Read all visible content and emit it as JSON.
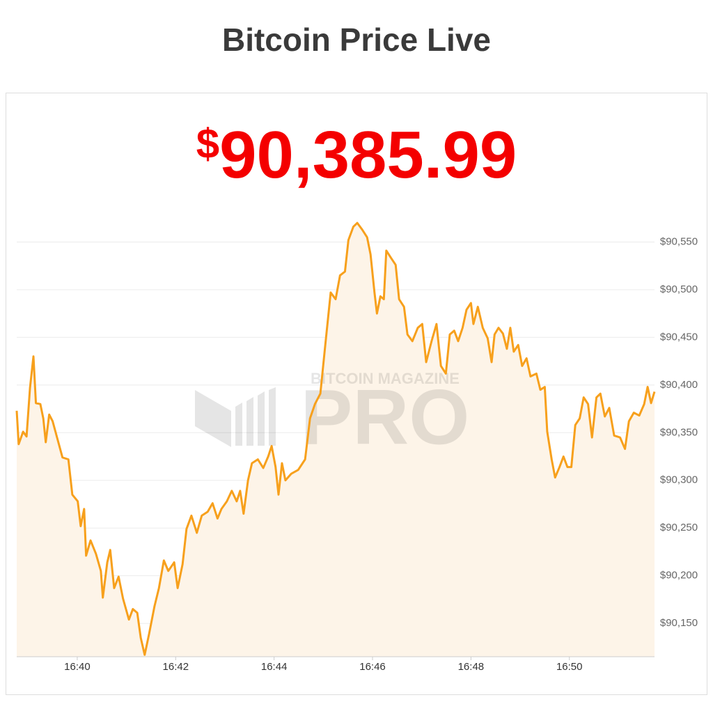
{
  "header": {
    "title": "Bitcoin Price Live"
  },
  "price": {
    "currency": "$",
    "amount": "90,385.99"
  },
  "watermark": {
    "top": "BITCOIN MAGAZINE",
    "main": "PRO"
  },
  "chart_data": {
    "type": "line",
    "color": "#f7a01c",
    "fill": "#fdf4e8",
    "grid": true,
    "x": [
      998.77,
      998.81,
      998.9,
      998.97,
      999.04,
      999.11,
      999.16,
      999.25,
      999.31,
      999.36,
      999.43,
      999.5,
      999.6,
      999.7,
      999.82,
      999.9,
      1000.01,
      1000.07,
      1000.14,
      1000.18,
      1000.27,
      1000.38,
      1000.48,
      1000.52,
      1000.61,
      1000.67,
      1000.75,
      1000.84,
      1000.93,
      1001.05,
      1001.13,
      1001.22,
      1001.29,
      1001.37,
      1001.46,
      1001.57,
      1001.66,
      1001.76,
      1001.85,
      1001.97,
      1002.04,
      1002.14,
      1002.22,
      1002.32,
      1002.43,
      1002.53,
      1002.65,
      1002.75,
      1002.85,
      1002.93,
      1003.04,
      1003.14,
      1003.24,
      1003.31,
      1003.38,
      1003.47,
      1003.55,
      1003.67,
      1003.78,
      1003.88,
      1003.95,
      1004.03,
      1004.09,
      1004.16,
      1004.23,
      1004.35,
      1004.49,
      1004.63,
      1004.73,
      1004.83,
      1004.94,
      1005.04,
      1005.15,
      1005.25,
      1005.34,
      1005.44,
      1005.51,
      1005.61,
      1005.69,
      1005.79,
      1005.89,
      1005.96,
      1006.04,
      1006.09,
      1006.16,
      1006.23,
      1006.28,
      1006.38,
      1006.47,
      1006.54,
      1006.64,
      1006.71,
      1006.81,
      1006.92,
      1007.01,
      1007.09,
      1007.2,
      1007.3,
      1007.39,
      1007.49,
      1007.57,
      1007.66,
      1007.74,
      1007.83,
      1007.91,
      1008.0,
      1008.05,
      1008.14,
      1008.24,
      1008.34,
      1008.42,
      1008.48,
      1008.56,
      1008.65,
      1008.73,
      1008.8,
      1008.87,
      1008.96,
      1009.04,
      1009.13,
      1009.21,
      1009.33,
      1009.41,
      1009.5,
      1009.55,
      1009.64,
      1009.71,
      1009.8,
      1009.88,
      1009.96,
      1010.04,
      1010.12,
      1010.21,
      1010.29,
      1010.38,
      1010.46,
      1010.55,
      1010.63,
      1010.72,
      1010.81,
      1010.91,
      1011.03,
      1011.13,
      1011.21,
      1011.31,
      1011.42,
      1011.52,
      1011.59,
      1011.66,
      1011.73
    ],
    "values": [
      90373,
      90338,
      90351,
      90346,
      90397,
      90430,
      90381,
      90380,
      90365,
      90340,
      90369,
      90362,
      90343,
      90324,
      90322,
      90285,
      90278,
      90252,
      90270,
      90221,
      90237,
      90223,
      90205,
      90177,
      90214,
      90227,
      90187,
      90199,
      90176,
      90154,
      90165,
      90161,
      90135,
      90117,
      90139,
      90168,
      90187,
      90216,
      90205,
      90214,
      90187,
      90212,
      90249,
      90263,
      90245,
      90263,
      90267,
      90276,
      90260,
      90270,
      90278,
      90289,
      90278,
      90289,
      90265,
      90300,
      90318,
      90322,
      90313,
      90325,
      90336,
      90314,
      90285,
      90318,
      90300,
      90307,
      90311,
      90322,
      90365,
      90380,
      90391,
      90442,
      90497,
      90490,
      90515,
      90519,
      90552,
      90566,
      90570,
      90563,
      90555,
      90537,
      90497,
      90475,
      90493,
      90490,
      90541,
      90533,
      90526,
      90490,
      90482,
      90453,
      90446,
      90460,
      90464,
      90424,
      90446,
      90464,
      90420,
      90412,
      90453,
      90457,
      90446,
      90460,
      90479,
      90486,
      90464,
      90482,
      90460,
      90449,
      90424,
      90453,
      90460,
      90454,
      90438,
      90460,
      90435,
      90442,
      90420,
      90428,
      90409,
      90412,
      90395,
      90398,
      90351,
      90322,
      90303,
      90314,
      90325,
      90314,
      90314,
      90358,
      90365,
      90387,
      90380,
      90345,
      90387,
      90391,
      90367,
      90376,
      90347,
      90345,
      90333,
      90362,
      90371,
      90368,
      90380,
      90398,
      90381,
      90393
    ],
    "xlim": [
      998.77,
      1011.73
    ],
    "xticks": [
      {
        "value": 1000,
        "label": "16:40"
      },
      {
        "value": 1002,
        "label": "16:42"
      },
      {
        "value": 1004,
        "label": "16:44"
      },
      {
        "value": 1006,
        "label": "16:46"
      },
      {
        "value": 1008,
        "label": "16:48"
      },
      {
        "value": 1010,
        "label": "16:50"
      }
    ],
    "ylim": [
      90115,
      90592
    ],
    "yticks": [
      {
        "value": 90150,
        "label": "$90,150"
      },
      {
        "value": 90200,
        "label": "$90,200"
      },
      {
        "value": 90250,
        "label": "$90,250"
      },
      {
        "value": 90300,
        "label": "$90,300"
      },
      {
        "value": 90350,
        "label": "$90,350"
      },
      {
        "value": 90400,
        "label": "$90,400"
      },
      {
        "value": 90450,
        "label": "$90,450"
      },
      {
        "value": 90500,
        "label": "$90,500"
      },
      {
        "value": 90550,
        "label": "$90,550"
      }
    ]
  }
}
